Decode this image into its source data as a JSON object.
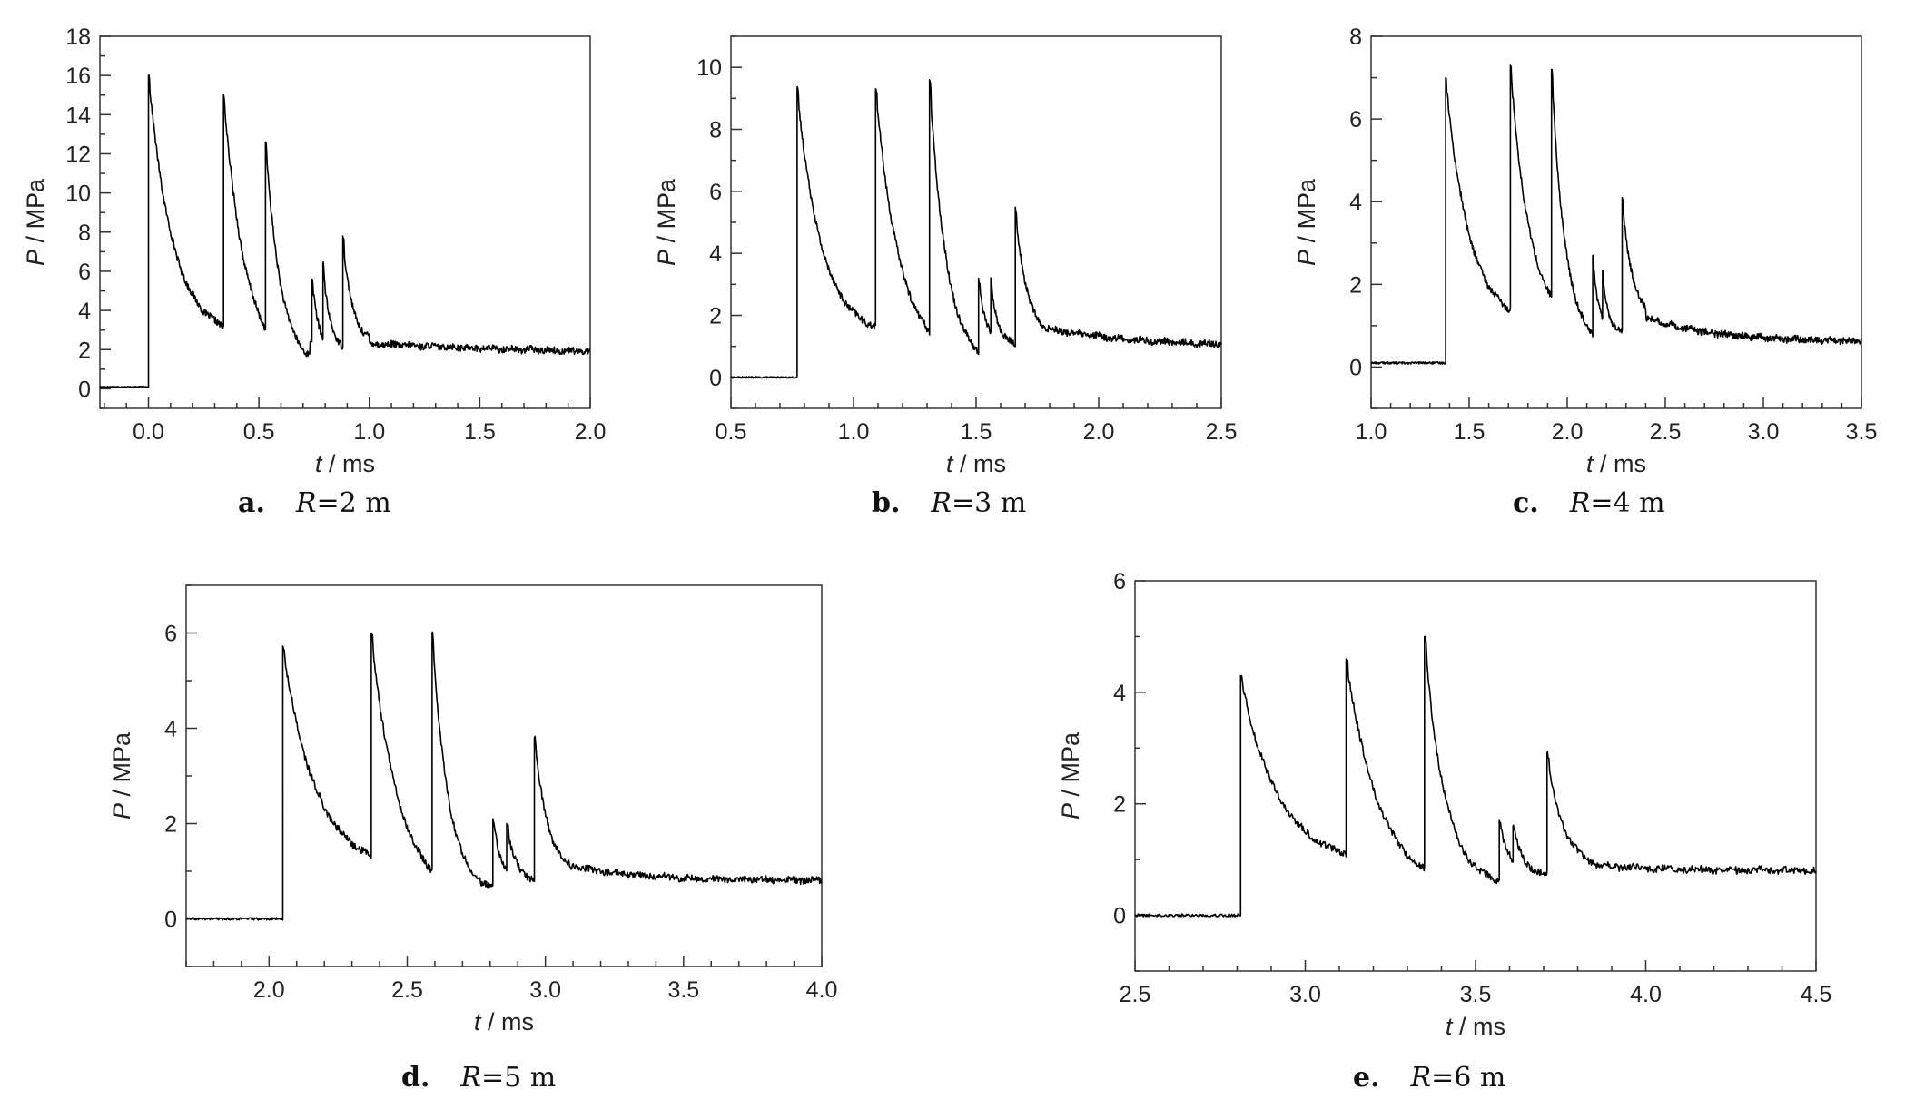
{
  "chart_data": [
    {
      "type": "line",
      "panel_label": "a.",
      "caption_var": "R",
      "caption_value": "=2 m",
      "xlabel_var": "t",
      "xlabel_unit": " / ms",
      "ylabel_var": "P",
      "ylabel_unit": " / MPa",
      "xlim": [
        -0.22,
        2.0
      ],
      "ylim": [
        -1,
        18
      ],
      "xticks": [
        "0.0",
        "0.5",
        "1.0",
        "1.5",
        "2.0"
      ],
      "xtick_values": [
        0.0,
        0.5,
        1.0,
        1.5,
        2.0
      ],
      "yticks": [
        "0",
        "2",
        "4",
        "6",
        "8",
        "10",
        "12",
        "14",
        "16",
        "18"
      ],
      "ytick_values": [
        0,
        2,
        4,
        6,
        8,
        10,
        12,
        14,
        16,
        18
      ],
      "baseline": 0.1,
      "tail": [
        1.5,
        2.3,
        1.5
      ],
      "pulses": [
        {
          "t": 0.0,
          "peak": 16.0,
          "tau": 0.11,
          "floor": 2.6,
          "dur": 0.34
        },
        {
          "t": 0.34,
          "peak": 15.0,
          "tau": 0.1,
          "floor": 1.0,
          "dur": 0.19
        },
        {
          "t": 0.53,
          "peak": 12.6,
          "tau": 0.07,
          "floor": 1.0,
          "dur": 0.2
        },
        {
          "t": 0.74,
          "peak": 5.6,
          "tau": 0.03,
          "floor": 2.0,
          "dur": 0.05
        },
        {
          "t": 0.79,
          "peak": 6.4,
          "tau": 0.03,
          "floor": 2.0,
          "dur": 0.09
        },
        {
          "t": 0.88,
          "peak": 7.8,
          "tau": 0.04,
          "floor": 2.4,
          "dur": 0.12
        }
      ]
    },
    {
      "type": "line",
      "panel_label": "b.",
      "caption_var": "R",
      "caption_value": "=3 m",
      "xlabel_var": "t",
      "xlabel_unit": " / ms",
      "ylabel_var": "P",
      "ylabel_unit": " / MPa",
      "xlim": [
        0.5,
        2.5
      ],
      "ylim": [
        -1,
        11
      ],
      "xticks": [
        "0.5",
        "1.0",
        "1.5",
        "2.0",
        "2.5"
      ],
      "xtick_values": [
        0.5,
        1.0,
        1.5,
        2.0,
        2.5
      ],
      "yticks": [
        "0",
        "2",
        "4",
        "6",
        "8",
        "10"
      ],
      "ytick_values": [
        0,
        2,
        4,
        6,
        8,
        10
      ],
      "baseline": 0.0,
      "tail": [
        1.0,
        1.6,
        0.35
      ],
      "pulses": [
        {
          "t": 0.77,
          "peak": 9.3,
          "tau": 0.1,
          "floor": 1.3,
          "dur": 0.32
        },
        {
          "t": 1.09,
          "peak": 9.3,
          "tau": 0.1,
          "floor": 0.5,
          "dur": 0.22
        },
        {
          "t": 1.31,
          "peak": 9.6,
          "tau": 0.07,
          "floor": 0.3,
          "dur": 0.2
        },
        {
          "t": 1.51,
          "peak": 3.2,
          "tau": 0.03,
          "floor": 1.0,
          "dur": 0.05
        },
        {
          "t": 1.56,
          "peak": 3.1,
          "tau": 0.03,
          "floor": 1.0,
          "dur": 0.1
        },
        {
          "t": 1.66,
          "peak": 5.4,
          "tau": 0.05,
          "floor": 1.2,
          "dur": 0.12
        }
      ]
    },
    {
      "type": "line",
      "panel_label": "c.",
      "caption_var": "R",
      "caption_value": "=4 m",
      "xlabel_var": "t",
      "xlabel_unit": " / ms",
      "ylabel_var": "P",
      "ylabel_unit": " / MPa",
      "xlim": [
        1.0,
        3.5
      ],
      "ylim": [
        -1,
        8
      ],
      "xticks": [
        "1.0",
        "1.5",
        "2.0",
        "2.5",
        "3.0",
        "3.5"
      ],
      "xtick_values": [
        1.0,
        1.5,
        2.0,
        2.5,
        3.0,
        3.5
      ],
      "yticks": [
        "0",
        "2",
        "4",
        "6",
        "8"
      ],
      "ytick_values": [
        0,
        2,
        4,
        6,
        8
      ],
      "baseline": 0.1,
      "tail": [
        0.6,
        1.2,
        0.35
      ],
      "pulses": [
        {
          "t": 1.38,
          "peak": 7.0,
          "tau": 0.12,
          "floor": 1.0,
          "dur": 0.33
        },
        {
          "t": 1.71,
          "peak": 7.3,
          "tau": 0.1,
          "floor": 0.9,
          "dur": 0.21
        },
        {
          "t": 1.92,
          "peak": 7.2,
          "tau": 0.07,
          "floor": 0.5,
          "dur": 0.21
        },
        {
          "t": 2.13,
          "peak": 2.7,
          "tau": 0.03,
          "floor": 0.8,
          "dur": 0.05
        },
        {
          "t": 2.18,
          "peak": 2.3,
          "tau": 0.03,
          "floor": 0.8,
          "dur": 0.1
        },
        {
          "t": 2.28,
          "peak": 4.1,
          "tau": 0.05,
          "floor": 1.2,
          "dur": 0.12
        }
      ]
    },
    {
      "type": "line",
      "panel_label": "d.",
      "caption_var": "R",
      "caption_value": "=5 m",
      "xlabel_var": "t",
      "xlabel_unit": " / ms",
      "ylabel_var": "P",
      "ylabel_unit": " / MPa",
      "xlim": [
        1.7,
        4.0
      ],
      "ylim": [
        -1,
        7
      ],
      "xticks": [
        "2.0",
        "2.5",
        "3.0",
        "3.5",
        "4.0"
      ],
      "xtick_values": [
        2.0,
        2.5,
        3.0,
        3.5,
        4.0
      ],
      "yticks": [
        "0",
        "2",
        "4",
        "6"
      ],
      "ytick_values": [
        0,
        2,
        4,
        6
      ],
      "baseline": 0.0,
      "tail": [
        0.8,
        1.1,
        0.25
      ],
      "pulses": [
        {
          "t": 2.05,
          "peak": 5.7,
          "tau": 0.12,
          "floor": 1.0,
          "dur": 0.32
        },
        {
          "t": 2.37,
          "peak": 6.0,
          "tau": 0.1,
          "floor": 0.4,
          "dur": 0.22
        },
        {
          "t": 2.59,
          "peak": 6.0,
          "tau": 0.06,
          "floor": 0.5,
          "dur": 0.22
        },
        {
          "t": 2.81,
          "peak": 2.1,
          "tau": 0.03,
          "floor": 0.8,
          "dur": 0.05
        },
        {
          "t": 2.86,
          "peak": 2.0,
          "tau": 0.03,
          "floor": 0.8,
          "dur": 0.1
        },
        {
          "t": 2.96,
          "peak": 3.8,
          "tau": 0.05,
          "floor": 0.9,
          "dur": 0.14
        }
      ]
    },
    {
      "type": "line",
      "panel_label": "e.",
      "caption_var": "R",
      "caption_value": "=6 m",
      "xlabel_var": "t",
      "xlabel_unit": " / ms",
      "ylabel_var": "P",
      "ylabel_unit": " / MPa",
      "xlim": [
        2.5,
        4.5
      ],
      "ylim": [
        -1,
        6
      ],
      "xticks": [
        "2.5",
        "3.0",
        "3.5",
        "4.0",
        "4.5"
      ],
      "xtick_values": [
        2.5,
        3.0,
        3.5,
        4.0,
        4.5
      ],
      "yticks": [
        "0",
        "2",
        "4",
        "6"
      ],
      "ytick_values": [
        0,
        2,
        4,
        6
      ],
      "baseline": 0.0,
      "tail": [
        0.8,
        0.9,
        0.2
      ],
      "pulses": [
        {
          "t": 2.81,
          "peak": 4.3,
          "tau": 0.11,
          "floor": 0.9,
          "dur": 0.31
        },
        {
          "t": 3.12,
          "peak": 4.6,
          "tau": 0.1,
          "floor": 0.4,
          "dur": 0.23
        },
        {
          "t": 3.35,
          "peak": 5.0,
          "tau": 0.06,
          "floor": 0.5,
          "dur": 0.22
        },
        {
          "t": 3.57,
          "peak": 1.7,
          "tau": 0.03,
          "floor": 0.7,
          "dur": 0.04
        },
        {
          "t": 3.61,
          "peak": 1.6,
          "tau": 0.03,
          "floor": 0.7,
          "dur": 0.1
        },
        {
          "t": 3.71,
          "peak": 2.9,
          "tau": 0.05,
          "floor": 0.8,
          "dur": 0.14
        }
      ]
    }
  ]
}
